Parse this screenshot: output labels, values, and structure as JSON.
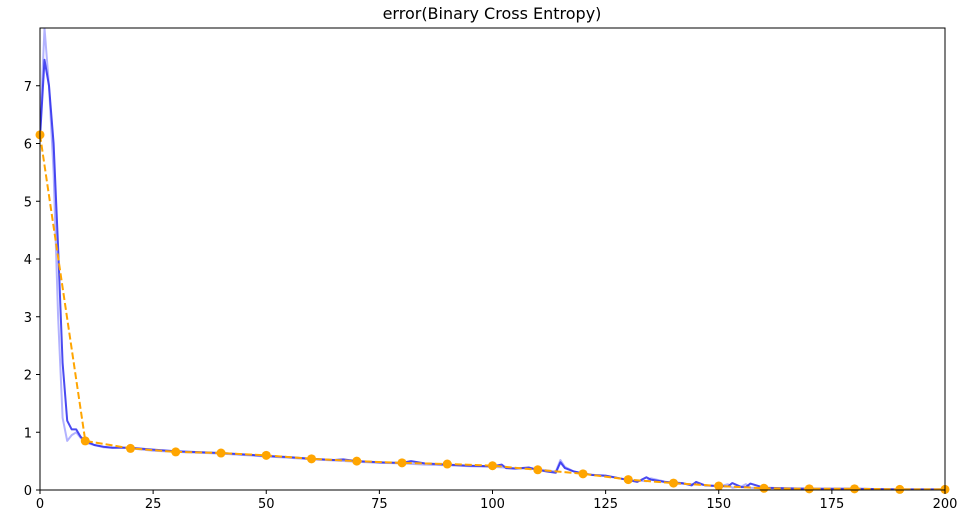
{
  "chart_data": {
    "type": "line",
    "title": "error(Binary Cross Entropy)",
    "xlabel": "",
    "ylabel": "",
    "xlim": [
      0,
      200
    ],
    "ylim": [
      0,
      8
    ],
    "xticks": [
      0,
      25,
      50,
      75,
      100,
      125,
      150,
      175,
      200
    ],
    "yticks": [
      0,
      1,
      2,
      3,
      4,
      5,
      6,
      7
    ],
    "grid": false,
    "colors": {
      "raw": "#0000ff",
      "raw_opacity": 0.3,
      "smoothed": "#2a2aee",
      "smoothed_opacity": 0.85,
      "validation": "#ffa500"
    },
    "series": [
      {
        "style": "light-blue-raw",
        "x": [
          0,
          1,
          2,
          3,
          4,
          5,
          6,
          7,
          8,
          9,
          10,
          12,
          14,
          16,
          18,
          20,
          25,
          30,
          40,
          50,
          55,
          60,
          65,
          70,
          75,
          80,
          85,
          90,
          95,
          100,
          105,
          110,
          114,
          115,
          116,
          118,
          120,
          125,
          130,
          134,
          135,
          140,
          145,
          150,
          152,
          153,
          155,
          156,
          157,
          160,
          170,
          180,
          190,
          200
        ],
        "y": [
          6.2,
          8.0,
          7.0,
          5.5,
          3.0,
          1.25,
          0.85,
          0.95,
          1.0,
          0.9,
          0.82,
          0.78,
          0.74,
          0.73,
          0.74,
          0.72,
          0.68,
          0.66,
          0.63,
          0.58,
          0.56,
          0.53,
          0.51,
          0.49,
          0.47,
          0.46,
          0.44,
          0.43,
          0.41,
          0.4,
          0.38,
          0.36,
          0.32,
          0.52,
          0.4,
          0.32,
          0.28,
          0.24,
          0.18,
          0.15,
          0.2,
          0.11,
          0.1,
          0.06,
          0.1,
          0.04,
          0.06,
          0.1,
          0.04,
          0.03,
          0.02,
          0.02,
          0.01,
          0.01
        ]
      },
      {
        "style": "blue-smoothed",
        "x": [
          0,
          1,
          2,
          3,
          4,
          5,
          6,
          7,
          8,
          9,
          10,
          12,
          14,
          16,
          18,
          20,
          25,
          30,
          40,
          50,
          55,
          60,
          65,
          67,
          70,
          75,
          80,
          82,
          85,
          90,
          95,
          100,
          102,
          103,
          105,
          108,
          110,
          112,
          114,
          115,
          116,
          118,
          120,
          122,
          125,
          127,
          130,
          132,
          134,
          135,
          138,
          140,
          142,
          144,
          145,
          147,
          150,
          152,
          153,
          155,
          156,
          157,
          160,
          170,
          180,
          190,
          200
        ],
        "y": [
          6.1,
          7.45,
          7.0,
          6.0,
          4.2,
          2.2,
          1.2,
          1.05,
          1.05,
          0.92,
          0.85,
          0.78,
          0.75,
          0.73,
          0.73,
          0.73,
          0.7,
          0.67,
          0.64,
          0.59,
          0.57,
          0.54,
          0.52,
          0.53,
          0.5,
          0.48,
          0.47,
          0.5,
          0.46,
          0.44,
          0.42,
          0.41,
          0.44,
          0.38,
          0.37,
          0.39,
          0.35,
          0.32,
          0.3,
          0.48,
          0.38,
          0.32,
          0.29,
          0.26,
          0.25,
          0.22,
          0.17,
          0.14,
          0.22,
          0.18,
          0.14,
          0.13,
          0.12,
          0.08,
          0.14,
          0.08,
          0.07,
          0.06,
          0.12,
          0.05,
          0.05,
          0.11,
          0.04,
          0.02,
          0.02,
          0.01,
          0.01
        ]
      },
      {
        "style": "orange-dashed-markers",
        "x": [
          0,
          10,
          20,
          30,
          40,
          50,
          60,
          70,
          80,
          90,
          100,
          110,
          120,
          130,
          140,
          150,
          160,
          170,
          180,
          190,
          200
        ],
        "y": [
          6.15,
          0.85,
          0.72,
          0.66,
          0.64,
          0.6,
          0.54,
          0.5,
          0.47,
          0.45,
          0.42,
          0.35,
          0.28,
          0.18,
          0.12,
          0.07,
          0.03,
          0.02,
          0.02,
          0.01,
          0.01
        ]
      }
    ]
  }
}
